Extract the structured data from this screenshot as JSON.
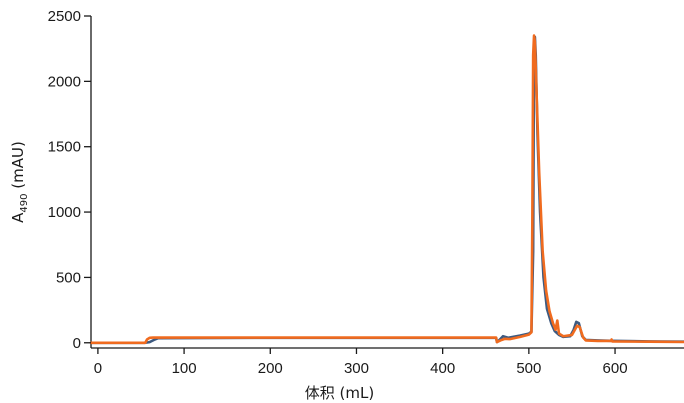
{
  "chart_data": {
    "type": "line",
    "xlabel": "体积 (mL)",
    "ylabel_main": "A",
    "ylabel_sub": "490",
    "ylabel_unit": " (mAU)",
    "xlim": [
      -8,
      680
    ],
    "ylim": [
      -40,
      2500
    ],
    "x_ticks": [
      0,
      100,
      200,
      300,
      400,
      500,
      600
    ],
    "y_ticks": [
      0,
      500,
      1000,
      1500,
      2000,
      2500
    ],
    "grid": false,
    "legend": "none",
    "series": [
      {
        "color": "#3d5a80",
        "points": [
          [
            -8,
            0
          ],
          [
            55,
            0
          ],
          [
            60,
            5
          ],
          [
            66,
            25
          ],
          [
            70,
            35
          ],
          [
            200,
            38
          ],
          [
            400,
            38
          ],
          [
            462,
            38
          ],
          [
            463,
            5
          ],
          [
            466,
            22
          ],
          [
            470,
            50
          ],
          [
            476,
            38
          ],
          [
            490,
            55
          ],
          [
            500,
            70
          ],
          [
            503,
            85
          ],
          [
            505,
            700
          ],
          [
            506,
            2300
          ],
          [
            507,
            2340
          ],
          [
            508,
            2200
          ],
          [
            510,
            1600
          ],
          [
            513,
            1000
          ],
          [
            517,
            500
          ],
          [
            521,
            260
          ],
          [
            526,
            150
          ],
          [
            530,
            90
          ],
          [
            535,
            60
          ],
          [
            540,
            45
          ],
          [
            548,
            50
          ],
          [
            552,
            100
          ],
          [
            555,
            160
          ],
          [
            558,
            150
          ],
          [
            560,
            100
          ],
          [
            562,
            50
          ],
          [
            566,
            22
          ],
          [
            580,
            18
          ],
          [
            595,
            15
          ],
          [
            640,
            10
          ],
          [
            680,
            8
          ]
        ]
      },
      {
        "color": "#f06b1f",
        "points": [
          [
            -8,
            0
          ],
          [
            55,
            0
          ],
          [
            57,
            25
          ],
          [
            60,
            38
          ],
          [
            64,
            40
          ],
          [
            200,
            40
          ],
          [
            400,
            40
          ],
          [
            462,
            40
          ],
          [
            463,
            5
          ],
          [
            467,
            18
          ],
          [
            472,
            30
          ],
          [
            478,
            28
          ],
          [
            490,
            45
          ],
          [
            500,
            62
          ],
          [
            503,
            80
          ],
          [
            504,
            900
          ],
          [
            505,
            2200
          ],
          [
            506,
            2350
          ],
          [
            507,
            2300
          ],
          [
            509,
            1900
          ],
          [
            512,
            1300
          ],
          [
            516,
            700
          ],
          [
            520,
            400
          ],
          [
            524,
            240
          ],
          [
            528,
            150
          ],
          [
            531,
            100
          ],
          [
            533,
            170
          ],
          [
            535,
            70
          ],
          [
            540,
            50
          ],
          [
            550,
            60
          ],
          [
            553,
            95
          ],
          [
            556,
            130
          ],
          [
            559,
            120
          ],
          [
            561,
            80
          ],
          [
            563,
            40
          ],
          [
            566,
            18
          ],
          [
            580,
            14
          ],
          [
            595,
            14
          ],
          [
            596,
            25
          ],
          [
            597,
            10
          ],
          [
            640,
            8
          ],
          [
            680,
            6
          ]
        ]
      }
    ]
  }
}
